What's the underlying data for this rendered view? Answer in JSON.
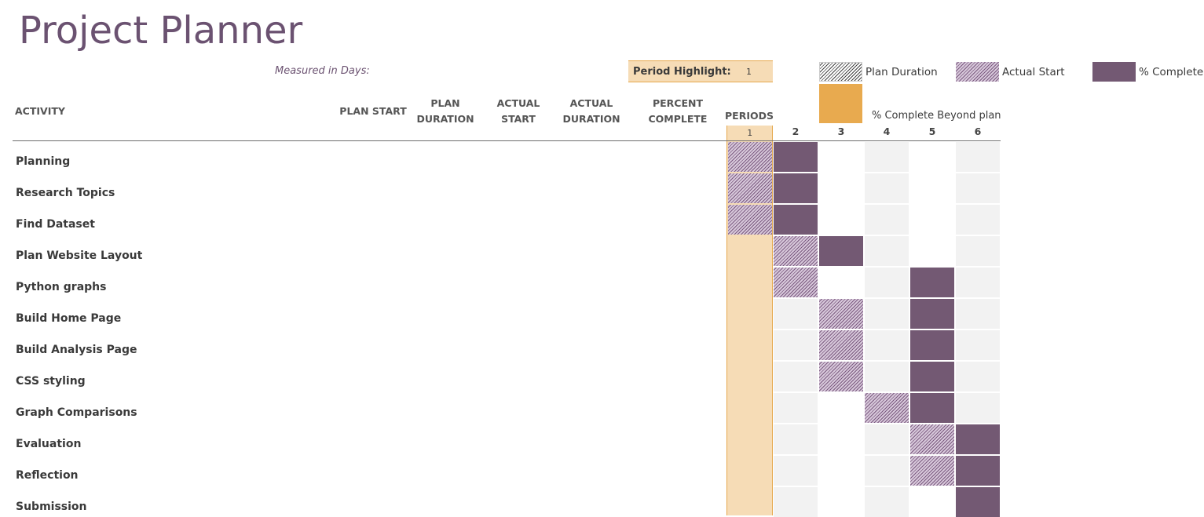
{
  "title": "Project Planner",
  "measured_label": "Measured in Days:",
  "period_highlight": {
    "label": "Period Highlight:",
    "value": "1"
  },
  "legend": {
    "plan_duration": "Plan Duration",
    "actual_start": "Actual Start",
    "percent_complete": "% Complete",
    "beyond_plan": "% Complete Beyond plan"
  },
  "columns": {
    "activity": "ACTIVITY",
    "plan_start": "PLAN START",
    "plan_duration_line1": "PLAN",
    "plan_duration_line2": "DURATION",
    "actual_start_line1": "ACTUAL",
    "actual_start_line2": "START",
    "actual_duration_line1": "ACTUAL",
    "actual_duration_line2": "DURATION",
    "percent_complete_line1": "PERCENT",
    "percent_complete_line2": "COMPLETE",
    "periods": "PERIODS"
  },
  "periods": [
    "1",
    "2",
    "3",
    "4",
    "5",
    "6"
  ],
  "highlighted_period": 1,
  "colors": {
    "title": "#6b5271",
    "complete": "#735973",
    "highlight": "#f6dcb6",
    "beyond_plan": "#e8aa4f"
  },
  "activities": [
    {
      "name": "Planning",
      "cells": {
        "1": "actual",
        "2": "complete"
      }
    },
    {
      "name": "Research Topics",
      "cells": {
        "1": "actual",
        "2": "complete"
      }
    },
    {
      "name": "Find Dataset",
      "cells": {
        "1": "actual",
        "2": "complete"
      }
    },
    {
      "name": "Plan Website Layout",
      "cells": {
        "2": "actual",
        "3": "complete"
      }
    },
    {
      "name": "Python graphs",
      "cells": {
        "2": "actual",
        "5": "complete"
      }
    },
    {
      "name": "Build Home Page",
      "cells": {
        "3": "actual",
        "5": "complete"
      }
    },
    {
      "name": "Build Analysis Page",
      "cells": {
        "3": "actual",
        "5": "complete"
      }
    },
    {
      "name": "CSS styling",
      "cells": {
        "3": "actual",
        "5": "complete"
      }
    },
    {
      "name": "Graph Comparisons",
      "cells": {
        "4": "actual",
        "5": "complete"
      }
    },
    {
      "name": "Evaluation",
      "cells": {
        "5": "actual",
        "6": "complete"
      }
    },
    {
      "name": "Reflection",
      "cells": {
        "5": "actual",
        "6": "complete"
      }
    },
    {
      "name": "Submission",
      "cells": {
        "6": "complete"
      }
    }
  ]
}
